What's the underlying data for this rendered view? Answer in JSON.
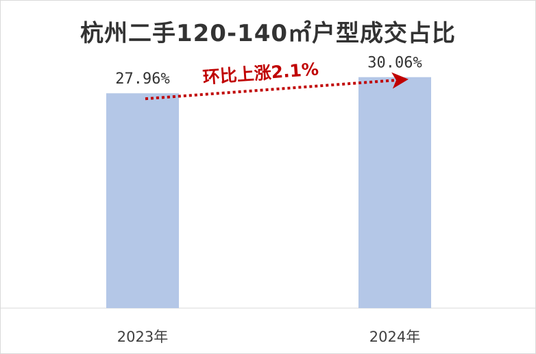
{
  "chart_data": {
    "type": "bar",
    "title": "杭州二手120-140㎡户型成交占比",
    "categories": [
      "2023年",
      "2024年"
    ],
    "values": [
      27.96,
      30.06
    ],
    "data_labels": [
      "27.96%",
      "30.06%"
    ],
    "ylim": [
      0,
      36
    ],
    "grid": false,
    "legend": "none",
    "annotation": {
      "text": "环比上涨2.1%",
      "from_category": "2023年",
      "to_category": "2024年",
      "style": "dotted-arrow"
    },
    "colors": {
      "bar": "#b4c7e7",
      "annotation": "#c00000",
      "axis": "#d9d9d9"
    }
  }
}
